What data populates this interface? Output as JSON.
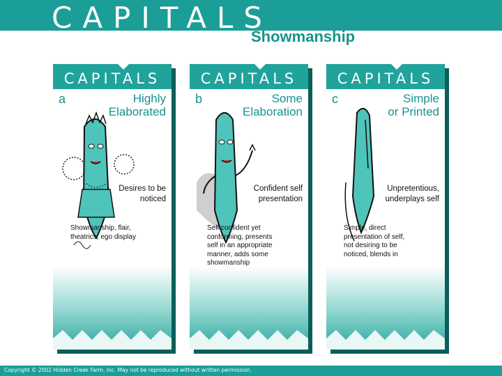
{
  "header": {
    "title": "CAPITALS",
    "subtitle": "Showmanship"
  },
  "cards": [
    {
      "title": "CAPITALS",
      "letter": "a",
      "heading": "Highly\nElaborated",
      "trait": "Desires to be\nnoticed",
      "description": "Showmanship, flair,\ntheatrics, ego display",
      "art": "ornate-pen-character"
    },
    {
      "title": "CAPITALS",
      "letter": "b",
      "heading": "Some\nElaboration",
      "trait": "Confident self\npresentation",
      "description": "Self confident yet\nconforming, presents\nself in an appropriate\nmanner, adds some\nshowmanship",
      "art": "waving-pen-character"
    },
    {
      "title": "CAPITALS",
      "letter": "c",
      "heading": "Simple\nor Printed",
      "trait": "Unpretentious,\nunderplays self",
      "description": "Simple, direct\npresentation of self,\nnot desiring to be\nnoticed, blends in",
      "art": "plain-pen"
    }
  ],
  "footer": {
    "copyright": "Copyright © 2002 Hidden Creek Farm, Inc. May not be reproduced without written permission."
  },
  "colors": {
    "teal": "#1a9e97",
    "dark_teal": "#0b5f5a",
    "pen_body": "#4fc4bb"
  }
}
